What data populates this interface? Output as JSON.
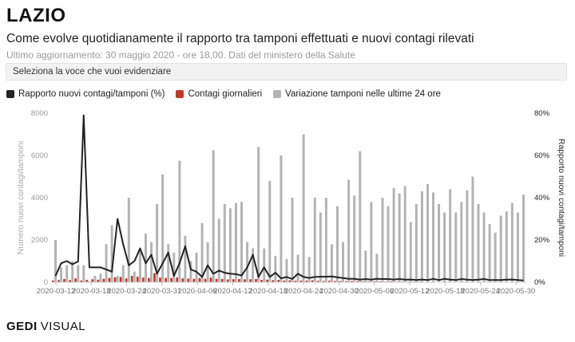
{
  "header": {
    "title": "LAZIO",
    "subtitle": "Come evolve quotidianamente il rapporto tra tamponi effettuati e nuovi contagi rilevati",
    "updated": "Ultimo aggiornamento: 30 maggio 2020 - ore 18,00. Dati del ministero della Salute"
  },
  "selector": {
    "label": "Seleziona la voce che vuoi evidenziare"
  },
  "legend": [
    {
      "label": "Rapporto nuovi contagi/tamponi (%)",
      "color": "#222222"
    },
    {
      "label": "Contagi giornalieri",
      "color": "#c0392b"
    },
    {
      "label": "Variazione tamponi nelle ultime 24 ore",
      "color": "#b3b3b3"
    }
  ],
  "footer": {
    "brand": "GEDI",
    "brand2": "VISUAL"
  },
  "chart_data": {
    "type": "bar",
    "ylabel": "Numero nuovi contagi/tamponi",
    "y2label": "Rapporto nuovi contagi/tamponi",
    "ylim": [
      0,
      8000
    ],
    "y2lim": [
      0,
      80
    ],
    "yticks": [
      "0",
      "2000",
      "4000",
      "6000",
      "8000"
    ],
    "y2ticks": [
      "0%",
      "20%",
      "40%",
      "60%",
      "80%"
    ],
    "xticks": [
      "2020-03-12",
      "2020-03-18",
      "2020-03-24",
      "2020-03-31",
      "2020-04-06",
      "2020-04-12",
      "2020-04-18",
      "2020-04-24",
      "2020-04-30",
      "2020-05-06",
      "2020-05-12",
      "2020-05-18",
      "2020-05-24",
      "2020-05-30"
    ],
    "grid": false,
    "legend_position": "top-left",
    "series": [
      {
        "name": "Variazione tamponi nelle ultime 24 ore",
        "color": "#b3b3b3",
        "axis": "left",
        "values": [
          2000,
          700,
          800,
          1000,
          800,
          800,
          50,
          300,
          400,
          1800,
          2700,
          300,
          800,
          4000,
          500,
          1600,
          2300,
          1900,
          3700,
          5100,
          1800,
          1400,
          5750,
          2200,
          1000,
          1400,
          2800,
          1900,
          6250,
          3000,
          3700,
          3500,
          3750,
          3800,
          1900,
          1600,
          6400,
          1600,
          4800,
          1250,
          6000,
          1100,
          4000,
          1300,
          7000,
          1200,
          4000,
          3300,
          4000,
          1800,
          3600,
          1900,
          4850,
          4100,
          6200,
          1500,
          3800,
          1350,
          4000,
          3600,
          4450,
          4200,
          4550,
          2850,
          3700,
          4300,
          4650,
          4250,
          3700,
          3300,
          4400,
          3300,
          3800,
          4350,
          5000,
          3700,
          3300,
          2750,
          2350,
          3150,
          3350,
          3750,
          3300,
          4150
        ]
      },
      {
        "name": "Contagi giornalieri",
        "color": "#c0392b",
        "axis": "left",
        "values": [
          80,
          100,
          150,
          100,
          180,
          80,
          110,
          140,
          120,
          160,
          200,
          230,
          250,
          180,
          300,
          260,
          220,
          200,
          430,
          220,
          200,
          200,
          230,
          180,
          170,
          160,
          200,
          160,
          220,
          160,
          160,
          130,
          140,
          150,
          140,
          140,
          150,
          110,
          120,
          100,
          110,
          80,
          90,
          70,
          80,
          80,
          90,
          70,
          60,
          70,
          60,
          60,
          50,
          60,
          50,
          40,
          40,
          40,
          40,
          30,
          40,
          30,
          30,
          30,
          30,
          30,
          20,
          20,
          20,
          20,
          20,
          20,
          20,
          20,
          20,
          20,
          20,
          20,
          15,
          15,
          15,
          15,
          15,
          15
        ]
      },
      {
        "name": "Rapporto nuovi contagi/tamponi (%)",
        "color": "#222222",
        "axis": "right",
        "values": [
          3.0,
          9.0,
          10.0,
          8.5,
          9.8,
          79,
          7.0,
          7.0,
          7.0,
          6.0,
          5.0,
          30,
          18,
          8.0,
          10.0,
          16,
          9.0,
          13,
          4.0,
          9.0,
          14,
          3.0,
          9.0,
          17,
          6.0,
          5.0,
          2.5,
          8.0,
          4.0,
          5.5,
          4.5,
          4.0,
          3.8,
          3.2,
          7.0,
          13,
          2.5,
          7.0,
          2.5,
          4.5,
          1.8,
          2.5,
          1.5,
          4.0,
          2.5,
          2.0,
          2.5,
          2.6,
          2.6,
          2.7,
          2.3,
          2.0,
          1.6,
          1.6,
          1.2,
          1.5,
          1.2,
          1.6,
          1.5,
          1.5,
          1.3,
          1.5,
          1.2,
          1.3,
          1.0,
          1.3,
          1.0,
          1.6,
          1.0,
          1.6,
          1.2,
          1.0,
          1.5,
          1.2,
          1.0,
          1.2,
          1.5,
          1.0,
          1.0,
          1.0,
          1.2,
          1.3,
          1.0,
          0.8
        ]
      }
    ]
  }
}
